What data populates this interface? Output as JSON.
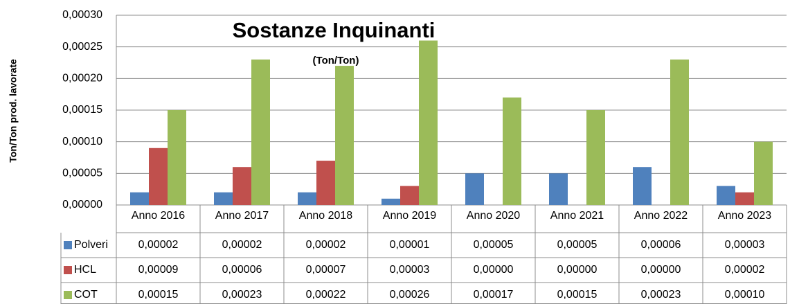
{
  "chart_data": {
    "type": "bar",
    "title": "Sostanze Inquinanti",
    "subtitle": "(Ton/Ton)",
    "y_label": "Ton/Ton prod. lavorate",
    "categories": [
      "Anno 2016",
      "Anno 2017",
      "Anno 2018",
      "Anno 2019",
      "Anno 2020",
      "Anno 2021",
      "Anno 2022",
      "Anno 2023"
    ],
    "series": [
      {
        "name": "Polveri",
        "color": "#4f81bd",
        "values": [
          2e-05,
          2e-05,
          2e-05,
          1e-05,
          5e-05,
          5e-05,
          6e-05,
          3e-05
        ],
        "value_labels": [
          "0,00002",
          "0,00002",
          "0,00002",
          "0,00001",
          "0,00005",
          "0,00005",
          "0,00006",
          "0,00003"
        ]
      },
      {
        "name": "HCL",
        "color": "#c0504d",
        "values": [
          9e-05,
          6e-05,
          7e-05,
          3e-05,
          0,
          0,
          0,
          2e-05
        ],
        "value_labels": [
          "0,00009",
          "0,00006",
          "0,00007",
          "0,00003",
          "0,00000",
          "0,00000",
          "0,00000",
          "0,00002"
        ]
      },
      {
        "name": "COT",
        "color": "#9bbb59",
        "values": [
          0.00015,
          0.00023,
          0.00022,
          0.00026,
          0.00017,
          0.00015,
          0.00023,
          0.0001
        ],
        "value_labels": [
          "0,00015",
          "0,00023",
          "0,00022",
          "0,00026",
          "0,00017",
          "0,00015",
          "0,00023",
          "0,00010"
        ]
      }
    ],
    "ylim": [
      0,
      0.0003
    ],
    "yticks": [
      {
        "value": 0,
        "label": "0,00000"
      },
      {
        "value": 5e-05,
        "label": "0,00005"
      },
      {
        "value": 0.0001,
        "label": "0,00010"
      },
      {
        "value": 0.00015,
        "label": "0,00015"
      },
      {
        "value": 0.0002,
        "label": "0,00020"
      },
      {
        "value": 0.00025,
        "label": "0,00025"
      },
      {
        "value": 0.0003,
        "label": "0,00030"
      }
    ],
    "grid": true
  }
}
